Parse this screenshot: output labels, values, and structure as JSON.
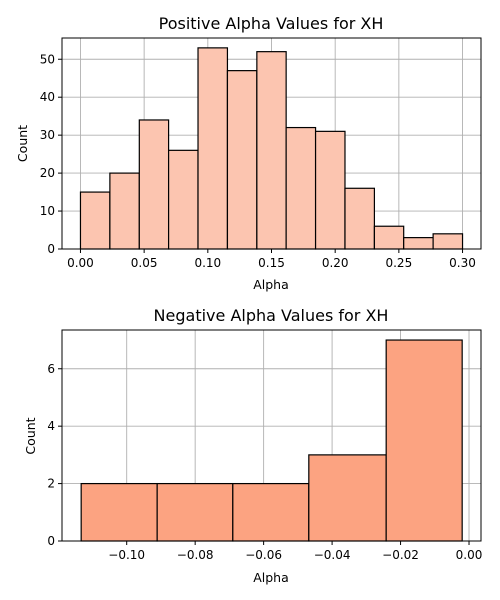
{
  "chart_data": [
    {
      "type": "bar",
      "title": "Positive Alpha Values for XH",
      "xlabel": "Alpha",
      "ylabel": "Count",
      "bar_color": "#fcc5b0",
      "grid": true,
      "xlim": [
        -0.0145,
        0.3145
      ],
      "ylim": [
        0,
        55.6
      ],
      "xticks": [
        0.0,
        0.05,
        0.1,
        0.15,
        0.2,
        0.25,
        0.3
      ],
      "xtick_labels": [
        "0.00",
        "0.05",
        "0.10",
        "0.15",
        "0.20",
        "0.25",
        "0.30"
      ],
      "yticks": [
        0,
        10,
        20,
        30,
        40,
        50
      ],
      "ytick_labels": [
        "0",
        "10",
        "20",
        "30",
        "40",
        "50"
      ],
      "bins": [
        {
          "start": 0.0,
          "end": 0.0231,
          "count": 15
        },
        {
          "start": 0.0231,
          "end": 0.0462,
          "count": 20
        },
        {
          "start": 0.0462,
          "end": 0.0692,
          "count": 34
        },
        {
          "start": 0.0692,
          "end": 0.0923,
          "count": 26
        },
        {
          "start": 0.0923,
          "end": 0.1154,
          "count": 53
        },
        {
          "start": 0.1154,
          "end": 0.1385,
          "count": 47
        },
        {
          "start": 0.1385,
          "end": 0.1615,
          "count": 52
        },
        {
          "start": 0.1615,
          "end": 0.1846,
          "count": 32
        },
        {
          "start": 0.1846,
          "end": 0.2077,
          "count": 31
        },
        {
          "start": 0.2077,
          "end": 0.2308,
          "count": 16
        },
        {
          "start": 0.2308,
          "end": 0.2538,
          "count": 6
        },
        {
          "start": 0.2538,
          "end": 0.2769,
          "count": 3
        },
        {
          "start": 0.2769,
          "end": 0.3,
          "count": 4
        }
      ]
    },
    {
      "type": "bar",
      "title": "Negative Alpha Values for XH",
      "xlabel": "Alpha",
      "ylabel": "Count",
      "bar_color": "#fca381",
      "grid": true,
      "xlim": [
        -0.1189,
        0.0035
      ],
      "ylim": [
        0,
        7.35
      ],
      "xticks": [
        -0.1,
        -0.08,
        -0.06,
        -0.04,
        -0.02,
        0.0
      ],
      "xtick_labels": [
        "−0.10",
        "−0.08",
        "−0.06",
        "−0.04",
        "−0.02",
        "0.00"
      ],
      "yticks": [
        0,
        2,
        4,
        6
      ],
      "ytick_labels": [
        "0",
        "2",
        "4",
        "6"
      ],
      "bins": [
        {
          "start": -0.1133,
          "end": -0.0911,
          "count": 2
        },
        {
          "start": -0.0911,
          "end": -0.069,
          "count": 2
        },
        {
          "start": -0.069,
          "end": -0.0468,
          "count": 2
        },
        {
          "start": -0.0468,
          "end": -0.0242,
          "count": 3
        },
        {
          "start": -0.0242,
          "end": -0.002,
          "count": 7
        }
      ]
    }
  ]
}
